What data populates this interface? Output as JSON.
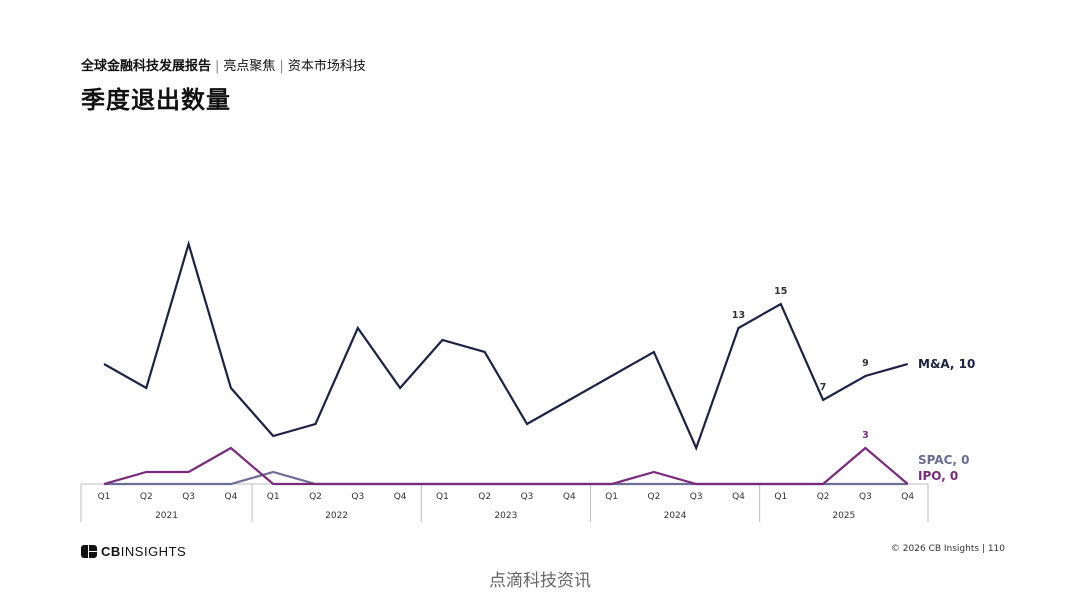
{
  "header": {
    "report": "全球金融科技发展报告",
    "section": "亮点聚焦",
    "topic": "资本市场科技"
  },
  "title": "季度退出数量",
  "chart_data": {
    "type": "line",
    "quarters": [
      "Q1",
      "Q2",
      "Q3",
      "Q4",
      "Q1",
      "Q2",
      "Q3",
      "Q4",
      "Q1",
      "Q2",
      "Q3",
      "Q4",
      "Q1",
      "Q2",
      "Q3",
      "Q4",
      "Q1",
      "Q2",
      "Q3",
      "Q4"
    ],
    "years": [
      "2021",
      "2022",
      "2023",
      "2024",
      "2025"
    ],
    "ylim": [
      0,
      21
    ],
    "series": [
      {
        "name": "M&A",
        "end_label": "M&A, 10",
        "color": "#1b2244",
        "values": [
          10,
          8,
          20,
          8,
          4,
          5,
          13,
          8,
          12,
          11,
          5,
          7,
          9,
          11,
          3,
          13,
          15,
          7,
          9,
          10
        ],
        "point_labels": {
          "15": "13",
          "16": "15",
          "17": "7",
          "18": "9"
        }
      },
      {
        "name": "SPAC",
        "end_label": "SPAC, 0",
        "color": "#6a6d96",
        "values": [
          0,
          0,
          0,
          0,
          1,
          0,
          0,
          0,
          0,
          0,
          0,
          0,
          0,
          0,
          0,
          0,
          0,
          0,
          0,
          0
        ],
        "point_labels": {}
      },
      {
        "name": "IPO",
        "end_label": "IPO, 0",
        "color": "#7a2a7c",
        "values": [
          0,
          1,
          1,
          3,
          0,
          0,
          0,
          0,
          0,
          0,
          0,
          0,
          0,
          1,
          0,
          0,
          0,
          0,
          3,
          0
        ],
        "point_labels": {
          "18": "3"
        }
      }
    ]
  },
  "footer": {
    "logo_a": "CB",
    "logo_b": "INSIGHTS",
    "copyright": "© 2026 CB Insights",
    "page": "110"
  },
  "watermark": "点滴科技资讯"
}
